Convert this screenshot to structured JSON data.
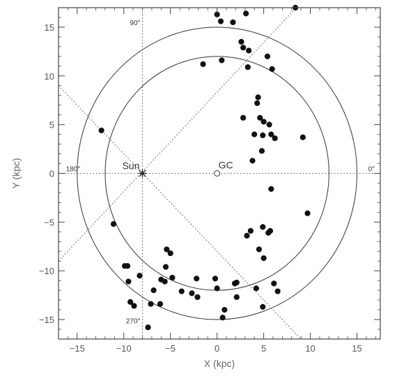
{
  "chart_data": {
    "type": "scatter",
    "xlabel": "X (kpc)",
    "ylabel": "Y (kpc)",
    "xlim": [
      -17,
      17.5
    ],
    "ylim": [
      -17,
      17
    ],
    "x_ticks": [
      -15,
      -10,
      -5,
      0,
      5,
      10,
      15
    ],
    "y_ticks": [
      -15,
      -10,
      -5,
      0,
      5,
      10,
      15
    ],
    "tick_labels_x": [
      "−15",
      "−10",
      "−5",
      "0",
      "5",
      "10",
      "15"
    ],
    "tick_labels_y": [
      "−15",
      "−10",
      "−5",
      "0",
      "5",
      "10",
      "15"
    ],
    "grid": false,
    "colors": {
      "axis": "#444444",
      "marker": "#111111",
      "circle": "#333333",
      "guide": "#555555"
    },
    "circles": [
      {
        "center": [
          0,
          0
        ],
        "radius": 15
      },
      {
        "center": [
          0,
          0
        ],
        "radius": 12
      }
    ],
    "guide_lines": [
      {
        "name": "l = 0°/180°",
        "from": [
          -17,
          0
        ],
        "to": [
          17.5,
          0
        ]
      },
      {
        "name": "l = 90°/270°",
        "from": [
          -8,
          -17
        ],
        "to": [
          -8,
          17
        ]
      },
      {
        "name": "diagonal 45°",
        "from": [
          -17,
          -9
        ],
        "to": [
          8.5,
          17
        ]
      },
      {
        "name": "diagonal 135°",
        "from": [
          -17,
          9
        ],
        "to": [
          9,
          -17
        ]
      }
    ],
    "annotations": {
      "sun": {
        "label": "Sun",
        "x": -8,
        "y": 0
      },
      "gc": {
        "label": "GC",
        "x": 0,
        "y": 0
      },
      "l0": {
        "label": "0°",
        "x": 16.2,
        "y": 0
      },
      "l90": {
        "label": "90°",
        "x": -8,
        "y": 15.5
      },
      "l180": {
        "label": "180°",
        "x": -16.2,
        "y": 0
      },
      "l270": {
        "label": "270°",
        "x": -8,
        "y": -15.1
      }
    },
    "points": [
      {
        "x": -12.4,
        "y": 4.4
      },
      {
        "x": -11.1,
        "y": -5.2
      },
      {
        "x": -9.9,
        "y": -9.5
      },
      {
        "x": -9.6,
        "y": -9.5
      },
      {
        "x": -9.5,
        "y": -11.1
      },
      {
        "x": -9.3,
        "y": -13.2
      },
      {
        "x": -8.9,
        "y": -13.6
      },
      {
        "x": -8.3,
        "y": -10.5
      },
      {
        "x": -7.4,
        "y": -15.8
      },
      {
        "x": -7.1,
        "y": -13.4
      },
      {
        "x": -6.8,
        "y": -12.0
      },
      {
        "x": -6.1,
        "y": -13.4
      },
      {
        "x": -6.0,
        "y": -10.9
      },
      {
        "x": -5.6,
        "y": -11.1
      },
      {
        "x": -5.5,
        "y": -9.6
      },
      {
        "x": -5.4,
        "y": -7.8
      },
      {
        "x": -5.0,
        "y": -8.2
      },
      {
        "x": -4.8,
        "y": -10.7
      },
      {
        "x": -3.8,
        "y": -12.1
      },
      {
        "x": -2.7,
        "y": -12.3
      },
      {
        "x": -2.2,
        "y": -10.8
      },
      {
        "x": -2.1,
        "y": -12.7
      },
      {
        "x": -1.5,
        "y": 11.2
      },
      {
        "x": -0.2,
        "y": -10.8
      },
      {
        "x": 0.0,
        "y": -11.8
      },
      {
        "x": 0.0,
        "y": 16.3
      },
      {
        "x": 0.4,
        "y": 15.6
      },
      {
        "x": 0.5,
        "y": 11.6
      },
      {
        "x": 0.6,
        "y": -14.8
      },
      {
        "x": 0.8,
        "y": -14.0
      },
      {
        "x": 1.7,
        "y": 15.5
      },
      {
        "x": 1.9,
        "y": -11.3
      },
      {
        "x": 2.1,
        "y": -11.2
      },
      {
        "x": 2.1,
        "y": -12.7
      },
      {
        "x": 2.6,
        "y": 13.5
      },
      {
        "x": 2.8,
        "y": 5.7
      },
      {
        "x": 2.8,
        "y": 12.9
      },
      {
        "x": 3.1,
        "y": 16.4
      },
      {
        "x": 3.2,
        "y": -6.4
      },
      {
        "x": 3.3,
        "y": 10.9
      },
      {
        "x": 3.4,
        "y": 12.6
      },
      {
        "x": 3.6,
        "y": -5.9
      },
      {
        "x": 3.8,
        "y": 1.3
      },
      {
        "x": 4.0,
        "y": 4.0
      },
      {
        "x": 4.2,
        "y": -11.8
      },
      {
        "x": 4.3,
        "y": 7.2
      },
      {
        "x": 4.4,
        "y": 7.8
      },
      {
        "x": 4.5,
        "y": -7.8
      },
      {
        "x": 4.6,
        "y": 5.7
      },
      {
        "x": 4.8,
        "y": 2.3
      },
      {
        "x": 4.9,
        "y": 3.9
      },
      {
        "x": 4.9,
        "y": -5.5
      },
      {
        "x": 4.9,
        "y": -13.7
      },
      {
        "x": 5.0,
        "y": 5.3
      },
      {
        "x": 5.0,
        "y": -8.7
      },
      {
        "x": 5.4,
        "y": 12.0
      },
      {
        "x": 5.5,
        "y": -6.1
      },
      {
        "x": 5.6,
        "y": 5.0
      },
      {
        "x": 5.7,
        "y": -5.9
      },
      {
        "x": 5.8,
        "y": 4.0
      },
      {
        "x": 5.8,
        "y": -1.6
      },
      {
        "x": 5.9,
        "y": 10.7
      },
      {
        "x": 6.1,
        "y": -11.3
      },
      {
        "x": 6.2,
        "y": 3.6
      },
      {
        "x": 6.5,
        "y": -12.1
      },
      {
        "x": 8.4,
        "y": 17.0
      },
      {
        "x": 9.2,
        "y": 3.7
      },
      {
        "x": 9.7,
        "y": -4.1
      }
    ]
  }
}
